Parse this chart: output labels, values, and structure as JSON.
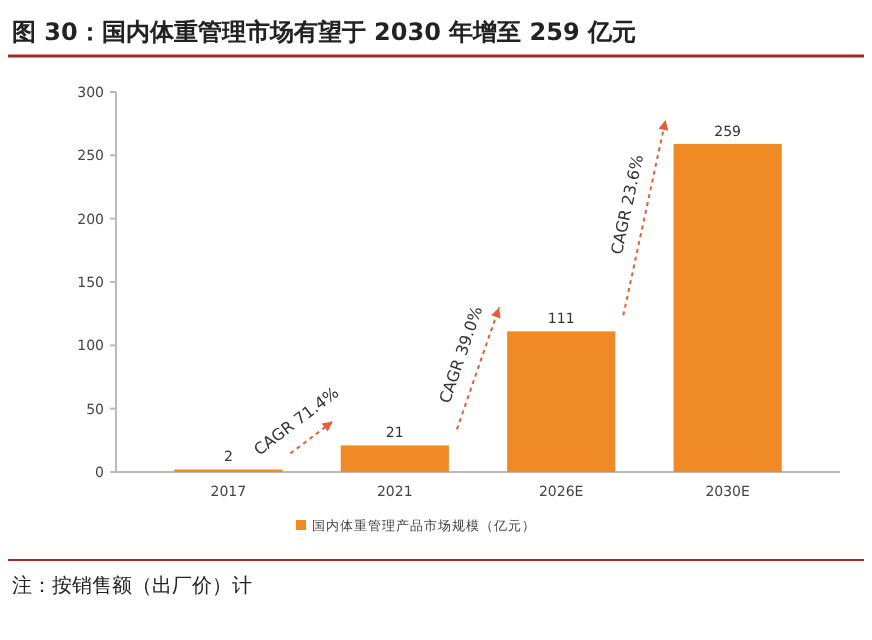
{
  "chart_data": {
    "type": "bar",
    "title": "图 30：国内体重管理市场有望于 2030 年增至 259 亿元",
    "categories": [
      "2017",
      "2021",
      "2026E",
      "2030E"
    ],
    "series": [
      {
        "name": "国内体重管理产品市场规模（亿元）",
        "color": "#f08a24",
        "values": [
          2,
          21,
          111,
          259
        ]
      }
    ],
    "ylim": [
      0,
      300
    ],
    "yticks": [
      0,
      50,
      100,
      150,
      200,
      250,
      300
    ],
    "data_labels": true,
    "legend": "bottom",
    "grid": false,
    "annotations": [
      "CAGR 71.4%",
      "CAGR 39.0%",
      "CAGR 23.6%",
      "注：按销售额（出厂价）计"
    ]
  }
}
